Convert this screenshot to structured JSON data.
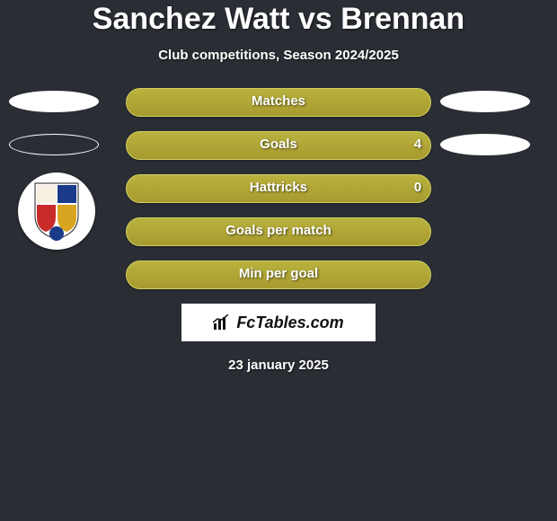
{
  "title": "Sanchez Watt vs Brennan",
  "subtitle": "Club competitions, Season 2024/2025",
  "date": "23 january 2025",
  "logo": "FcTables.com",
  "colors": {
    "background": "#2a2e34",
    "bar_fill_top": "#b9b23e",
    "bar_fill_bottom": "#a79a2f",
    "bar_border": "#d0d060",
    "text": "#ffffff"
  },
  "rows": [
    {
      "label": "Matches",
      "left_val": "",
      "right_val": "",
      "pill_left_fill": true,
      "pill_right_fill": true,
      "show_pills": true,
      "crest": false
    },
    {
      "label": "Goals",
      "left_val": "",
      "right_val": "4",
      "pill_left_fill": false,
      "pill_right_fill": true,
      "show_pills": true,
      "crest": false
    },
    {
      "label": "Hattricks",
      "left_val": "",
      "right_val": "0",
      "pill_left_fill": false,
      "pill_right_fill": false,
      "show_pills": false,
      "crest": true
    },
    {
      "label": "Goals per match",
      "left_val": "",
      "right_val": "",
      "pill_left_fill": false,
      "pill_right_fill": false,
      "show_pills": false,
      "crest": false
    },
    {
      "label": "Min per goal",
      "left_val": "",
      "right_val": "",
      "pill_left_fill": false,
      "pill_right_fill": false,
      "show_pills": false,
      "crest": false
    }
  ],
  "crest_colors": {
    "q1": "#f5f0e0",
    "q2": "#1a3a8a",
    "q3": "#c92a2a",
    "q4": "#d9a520"
  }
}
